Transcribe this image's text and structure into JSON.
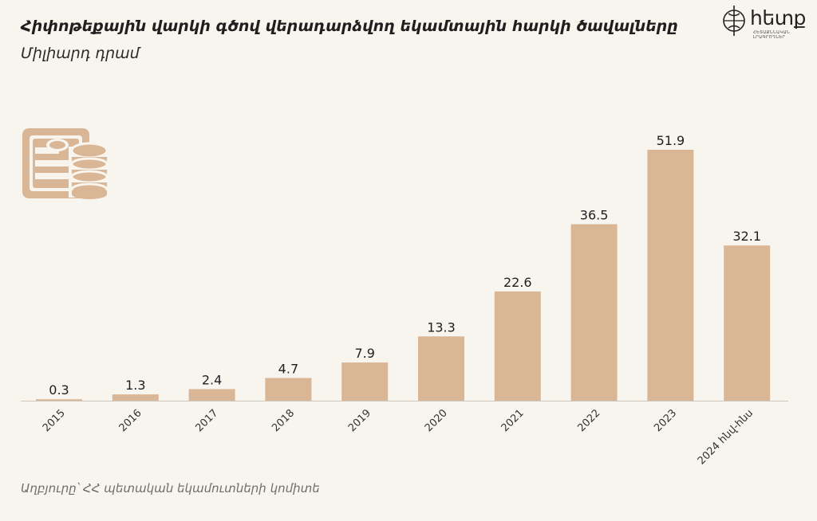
{
  "title": "Հիփոթեքային վարկի գծով վերադարձվող եկամտային հարկի ծավալները",
  "subtitle": "Միլիարդ դրամ",
  "logo": {
    "text": "hետք",
    "tagline": "ՀԵՏԱՔՆՆԱԿԱՆ ԼՐԱԳՐՈՂՆԵՐ"
  },
  "source": "Աղբյուրը՝ ՀՀ պետական եկամուտների կոմիտե",
  "colors": {
    "bar": "#d9b696",
    "icon": "#d9b696",
    "background": "#f8f4ee",
    "axis": "#cfc8bf"
  },
  "icon_name": "money-bills-coins-icon",
  "chart_data": {
    "type": "bar",
    "categories": [
      "2015",
      "2016",
      "2017",
      "2018",
      "2019",
      "2020",
      "2021",
      "2022",
      "2023",
      "2024 հնվ-հնս"
    ],
    "values": [
      0.3,
      1.3,
      2.4,
      4.7,
      7.9,
      13.3,
      22.6,
      36.5,
      51.9,
      32.1
    ],
    "title": "Հիփոթեքային վարկի գծով վերադարձվող եկամտային հարկի ծավալները",
    "subtitle": "Միլիարդ դրամ",
    "xlabel": "",
    "ylabel": "",
    "ylim": [
      0,
      55
    ],
    "grid": false,
    "legend": "none",
    "data_labels": true
  }
}
